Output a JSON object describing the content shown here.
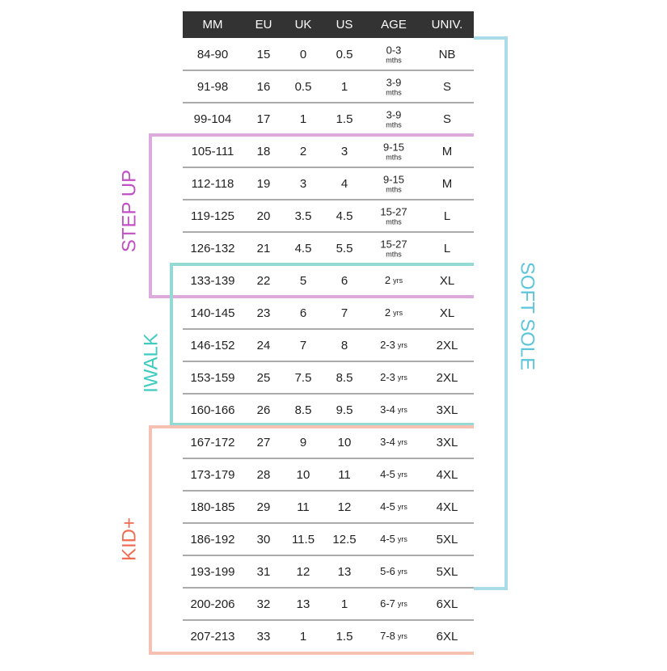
{
  "header": [
    "MM",
    "EU",
    "UK",
    "US",
    "AGE",
    "UNIV."
  ],
  "rows": [
    {
      "mm": "84-90",
      "eu": "15",
      "uk": "0",
      "us": "0.5",
      "age": "0-3",
      "unit": "mths",
      "univ": "NB"
    },
    {
      "mm": "91-98",
      "eu": "16",
      "uk": "0.5",
      "us": "1",
      "age": "3-9",
      "unit": "mths",
      "univ": "S"
    },
    {
      "mm": "99-104",
      "eu": "17",
      "uk": "1",
      "us": "1.5",
      "age": "3-9",
      "unit": "mths",
      "univ": "S"
    },
    {
      "mm": "105-111",
      "eu": "18",
      "uk": "2",
      "us": "3",
      "age": "9-15",
      "unit": "mths",
      "univ": "M"
    },
    {
      "mm": "112-118",
      "eu": "19",
      "uk": "3",
      "us": "4",
      "age": "9-15",
      "unit": "mths",
      "univ": "M"
    },
    {
      "mm": "119-125",
      "eu": "20",
      "uk": "3.5",
      "us": "4.5",
      "age": "15-27",
      "unit": "mths",
      "univ": "L"
    },
    {
      "mm": "126-132",
      "eu": "21",
      "uk": "4.5",
      "us": "5.5",
      "age": "15-27",
      "unit": "mths",
      "univ": "L"
    },
    {
      "mm": "133-139",
      "eu": "22",
      "uk": "5",
      "us": "6",
      "age": "2",
      "unit": "yrs",
      "univ": "XL"
    },
    {
      "mm": "140-145",
      "eu": "23",
      "uk": "6",
      "us": "7",
      "age": "2",
      "unit": "yrs",
      "univ": "XL"
    },
    {
      "mm": "146-152",
      "eu": "24",
      "uk": "7",
      "us": "8",
      "age": "2-3",
      "unit": "yrs",
      "univ": "2XL"
    },
    {
      "mm": "153-159",
      "eu": "25",
      "uk": "7.5",
      "us": "8.5",
      "age": "2-3",
      "unit": "yrs",
      "univ": "2XL"
    },
    {
      "mm": "160-166",
      "eu": "26",
      "uk": "8.5",
      "us": "9.5",
      "age": "3-4",
      "unit": "yrs",
      "univ": "3XL"
    },
    {
      "mm": "167-172",
      "eu": "27",
      "uk": "9",
      "us": "10",
      "age": "3-4",
      "unit": "yrs",
      "univ": "3XL"
    },
    {
      "mm": "173-179",
      "eu": "28",
      "uk": "10",
      "us": "11",
      "age": "4-5",
      "unit": "yrs",
      "univ": "4XL"
    },
    {
      "mm": "180-185",
      "eu": "29",
      "uk": "11",
      "us": "12",
      "age": "4-5",
      "unit": "yrs",
      "univ": "4XL"
    },
    {
      "mm": "186-192",
      "eu": "30",
      "uk": "11.5",
      "us": "12.5",
      "age": "4-5",
      "unit": "yrs",
      "univ": "5XL"
    },
    {
      "mm": "193-199",
      "eu": "31",
      "uk": "12",
      "us": "13",
      "age": "5-6",
      "unit": "yrs",
      "univ": "5XL"
    },
    {
      "mm": "200-206",
      "eu": "32",
      "uk": "13",
      "us": "1",
      "age": "6-7",
      "unit": "yrs",
      "univ": "6XL"
    },
    {
      "mm": "207-213",
      "eu": "33",
      "uk": "1",
      "us": "1.5",
      "age": "7-8",
      "unit": "yrs",
      "univ": "6XL"
    }
  ],
  "groups": {
    "soft_sole": "SOFT SOLE",
    "step_up": "STEP UP",
    "iwalk": "IWALK",
    "kid_plus": "KID+"
  }
}
